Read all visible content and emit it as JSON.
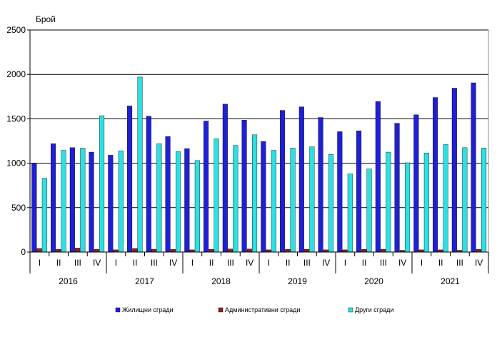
{
  "chart_data": {
    "type": "bar",
    "ylabel": "Брой",
    "ylim": [
      0,
      2500
    ],
    "yticks": [
      0,
      500,
      1000,
      1500,
      2000,
      2500
    ],
    "grid": true,
    "legend_position": "bottom",
    "quarters": [
      "I",
      "II",
      "III",
      "IV"
    ],
    "years": [
      "2016",
      "2017",
      "2018",
      "2019",
      "2020",
      "2021"
    ],
    "categories": [
      "2016 I",
      "2016 II",
      "2016 III",
      "2016 IV",
      "2017 I",
      "2017 II",
      "2017 III",
      "2017 IV",
      "2018 I",
      "2018 II",
      "2018 III",
      "2018 IV",
      "2019 I",
      "2019 II",
      "2019 III",
      "2019 IV",
      "2020 I",
      "2020 II",
      "2020 III",
      "2020 IV",
      "2021 I",
      "2021 II",
      "2021 III",
      "2021 IV"
    ],
    "series": [
      {
        "name": "Жилищни сгради",
        "color": "#1f1fd6",
        "values": [
          1000,
          1220,
          1175,
          1125,
          1090,
          1645,
          1530,
          1300,
          1165,
          1475,
          1665,
          1485,
          1245,
          1595,
          1635,
          1515,
          1355,
          1365,
          1695,
          1450,
          1545,
          1740,
          1845,
          1905
        ]
      },
      {
        "name": "Административни сгради",
        "color": "#9b1c1c",
        "values": [
          40,
          30,
          45,
          30,
          25,
          40,
          30,
          30,
          25,
          30,
          35,
          35,
          25,
          30,
          30,
          25,
          25,
          30,
          30,
          20,
          25,
          25,
          20,
          30
        ]
      },
      {
        "name": "Други сгради",
        "color": "#2ce0e4",
        "values": [
          830,
          1145,
          1170,
          1535,
          1140,
          1970,
          1220,
          1130,
          1030,
          1275,
          1200,
          1320,
          1145,
          1170,
          1185,
          1100,
          880,
          935,
          1125,
          1005,
          1115,
          1210,
          1175,
          1170
        ]
      }
    ]
  }
}
